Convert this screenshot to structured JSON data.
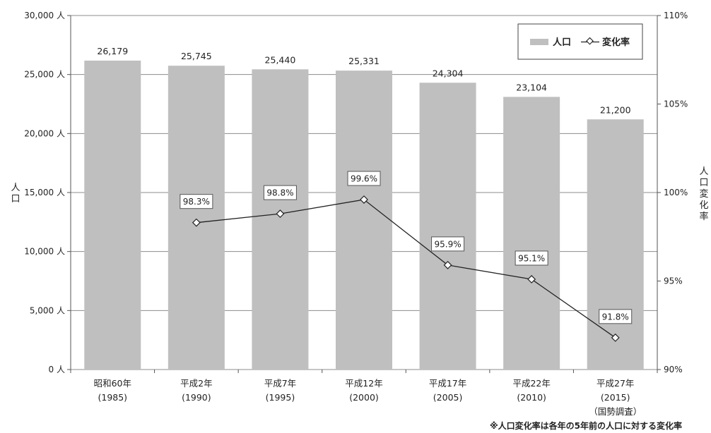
{
  "chart_data": {
    "type": "bar",
    "categories": [
      [
        "昭和60年",
        "(1985)"
      ],
      [
        "平成2年",
        "(1990)"
      ],
      [
        "平成7年",
        "(1995)"
      ],
      [
        "平成12年",
        "(2000)"
      ],
      [
        "平成17年",
        "(2005)"
      ],
      [
        "平成22年",
        "(2010)"
      ],
      [
        "平成27年",
        "(2015)",
        "（国勢調査）"
      ]
    ],
    "series": [
      {
        "name": "人口",
        "type": "bar",
        "axis": "left",
        "values": [
          26179,
          25745,
          25440,
          25331,
          24304,
          23104,
          21200
        ],
        "labels": [
          "26,179",
          "25,745",
          "25,440",
          "25,331",
          "24,304",
          "23,104",
          "21,200"
        ],
        "color": "#bfbfbf"
      },
      {
        "name": "変化率",
        "type": "line",
        "axis": "right",
        "values": [
          null,
          98.3,
          98.8,
          99.6,
          95.9,
          95.1,
          91.8
        ],
        "labels": [
          "",
          "98.3%",
          "98.8%",
          "99.6%",
          "95.9%",
          "95.1%",
          "91.8%"
        ],
        "color": "#222222"
      }
    ],
    "ylim_left": [
      0,
      30000
    ],
    "yticks_left": [
      "0 人",
      "5,000 人",
      "10,000 人",
      "15,000 人",
      "20,000 人",
      "25,000 人",
      "30,000 人"
    ],
    "ylim_right": [
      90,
      110
    ],
    "yticks_right": [
      "90%",
      "95%",
      "100%",
      "105%",
      "110%"
    ],
    "ylabel_left": "人口",
    "ylabel_right": "人口変化率",
    "legend_position": "top-right",
    "grid": true,
    "footnote": "※人口変化率は各年の5年前の人口に対する変化率"
  }
}
